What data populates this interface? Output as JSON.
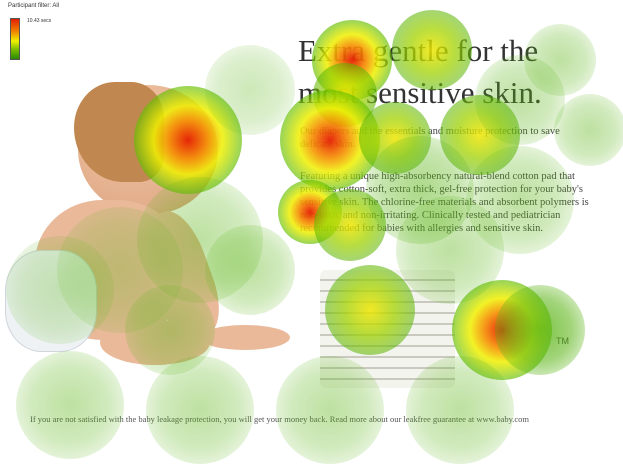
{
  "legend": {
    "participant_filter": "Participant filter: All",
    "max_duration": "10.43 secs",
    "scale_colors": [
      "#e02000",
      "#f0f000",
      "#2a8a00"
    ]
  },
  "ad": {
    "headline_line1": "Extra gentle for the",
    "headline_line2": "most sensitive skin.",
    "paragraph1": "Our diapers add the essentials and moisture protection to save delicate skin.",
    "paragraph2": "Featuring a unique high-absorbency natural-blend cotton pad that provides cotton-soft, extra thick, gel-free protection for your baby's sensitive skin.  The chlorine-free materials and absorbent polymers is non-toxic and non-irritating. Clinically tested and pediatrician recommended for babies with allergies and sensitive skin.",
    "trademark": "TM",
    "footer": "If you are not satisfied with the baby leakage protection, you will get your money back. Read more about our leakfree guarantee at www.baby.com"
  }
}
